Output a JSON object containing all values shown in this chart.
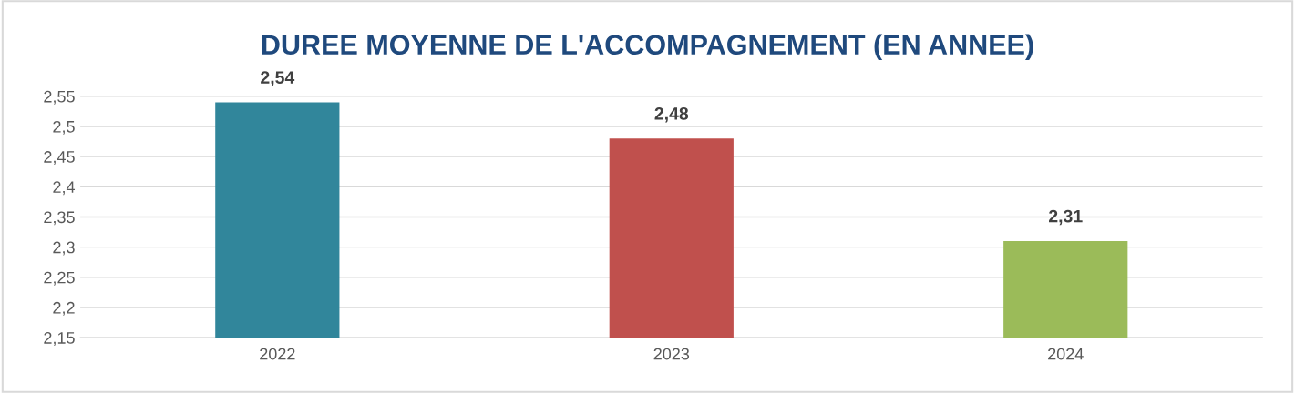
{
  "chart_data": {
    "type": "bar",
    "title": "DUREE MOYENNE DE L'ACCOMPAGNEMENT (EN ANNEE)",
    "categories": [
      "2022",
      "2023",
      "2024"
    ],
    "values": [
      2.54,
      2.48,
      2.31
    ],
    "colors": [
      "#31869b",
      "#c0504d",
      "#9bbb59"
    ],
    "value_labels": [
      "2,54",
      "2,48",
      "2,31"
    ],
    "ylim": [
      2.15,
      2.55
    ],
    "yticks": [
      {
        "value": 2.15,
        "label": "2,15"
      },
      {
        "value": 2.2,
        "label": "2,2"
      },
      {
        "value": 2.25,
        "label": "2,25"
      },
      {
        "value": 2.3,
        "label": "2,3"
      },
      {
        "value": 2.35,
        "label": "2,35"
      },
      {
        "value": 2.4,
        "label": "2,4"
      },
      {
        "value": 2.45,
        "label": "2,45"
      },
      {
        "value": 2.5,
        "label": "2,5"
      },
      {
        "value": 2.55,
        "label": "2,55"
      }
    ],
    "grid": "y",
    "legend": false
  }
}
